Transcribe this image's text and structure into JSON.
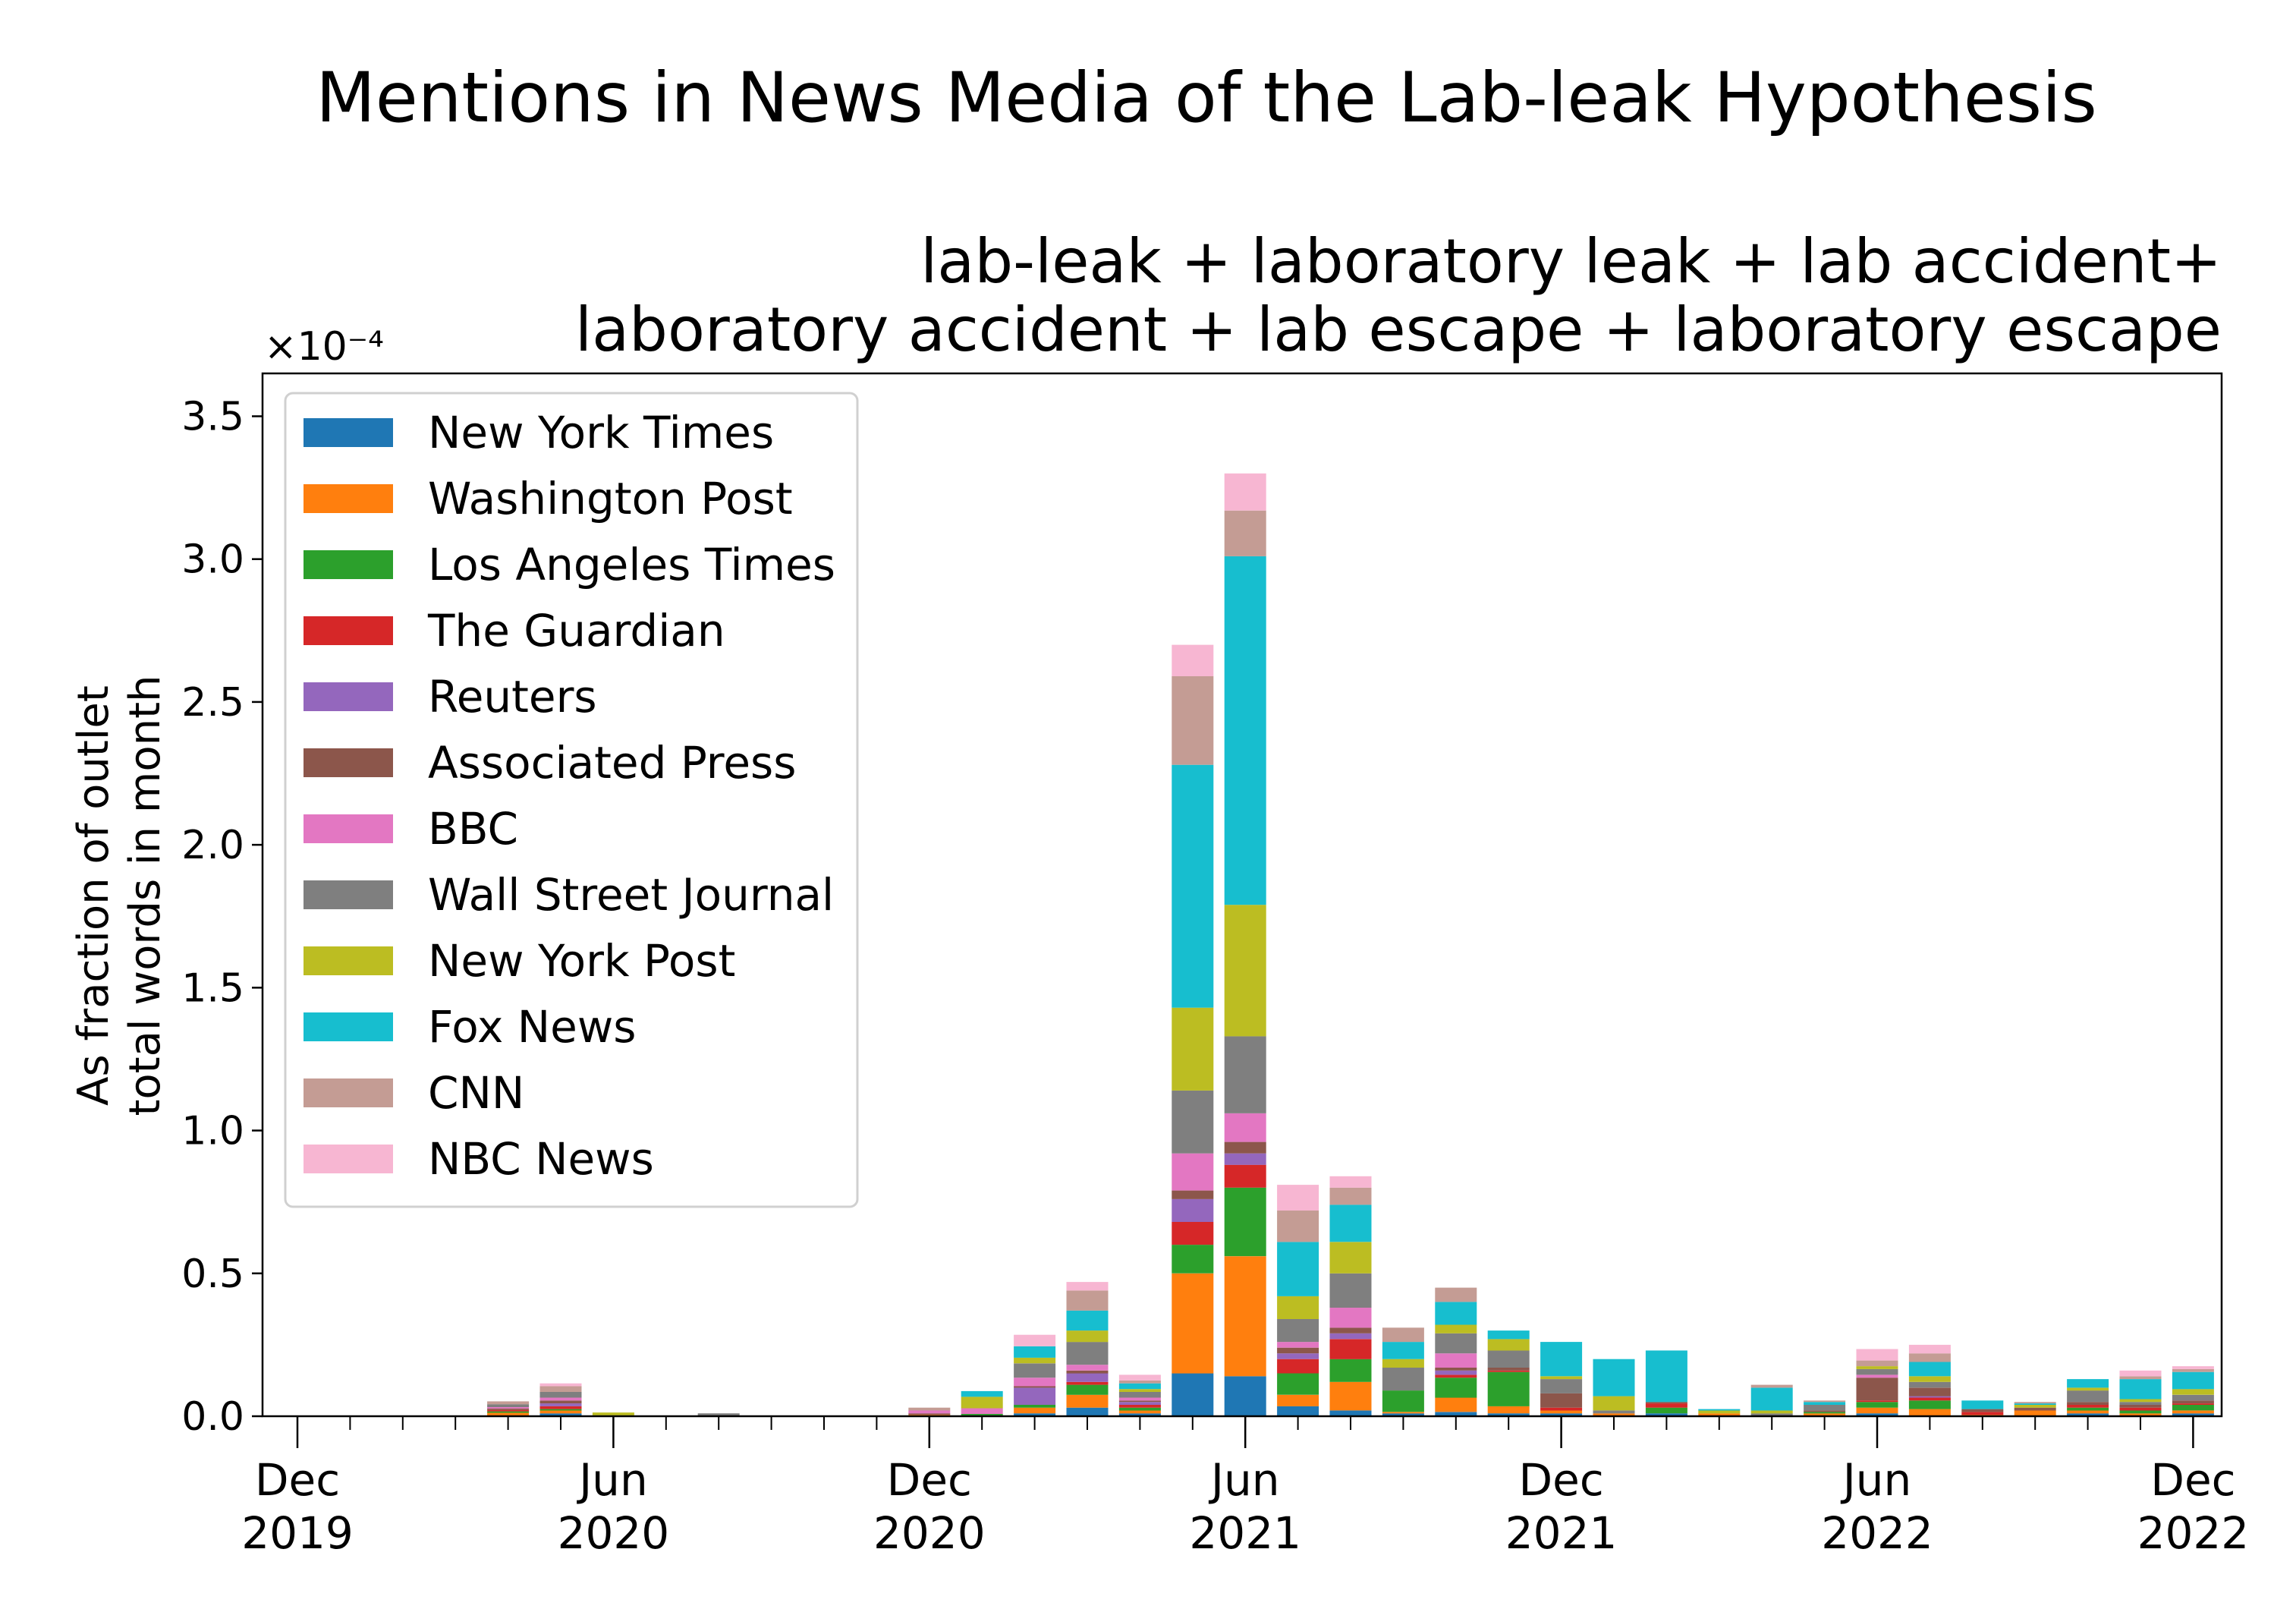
{
  "chart_data": {
    "type": "bar",
    "stacked": true,
    "title": "Mentions in News Media of the Lab-leak Hypothesis",
    "subtitle_lines": [
      "lab-leak + laboratory leak + lab accident+",
      "laboratory accident + lab escape + laboratory escape"
    ],
    "ylabel_lines": [
      "As fraction of outlet",
      "total words in month"
    ],
    "y_multiplier": "×10⁻⁴",
    "ylim": [
      0,
      3.65
    ],
    "yticks": [
      "0.0",
      "0.5",
      "1.0",
      "1.5",
      "2.0",
      "2.5",
      "3.0",
      "3.5"
    ],
    "grid": false,
    "legend_position": "top-left",
    "x": [
      "2019-12",
      "2020-01",
      "2020-02",
      "2020-03",
      "2020-04",
      "2020-05",
      "2020-06",
      "2020-07",
      "2020-08",
      "2020-09",
      "2020-10",
      "2020-11",
      "2020-12",
      "2021-01",
      "2021-02",
      "2021-03",
      "2021-04",
      "2021-05",
      "2021-06",
      "2021-07",
      "2021-08",
      "2021-09",
      "2021-10",
      "2021-11",
      "2021-12",
      "2022-01",
      "2022-02",
      "2022-03",
      "2022-04",
      "2022-05",
      "2022-06",
      "2022-07",
      "2022-08",
      "2022-09",
      "2022-10",
      "2022-11",
      "2022-12"
    ],
    "xtick_labels": [
      {
        "month": "Dec",
        "year": "2019",
        "index": 0
      },
      {
        "month": "Jun",
        "year": "2020",
        "index": 6
      },
      {
        "month": "Dec",
        "year": "2020",
        "index": 12
      },
      {
        "month": "Jun",
        "year": "2021",
        "index": 18
      },
      {
        "month": "Dec",
        "year": "2021",
        "index": 24
      },
      {
        "month": "Jun",
        "year": "2022",
        "index": 30
      },
      {
        "month": "Dec",
        "year": "2022",
        "index": 36
      }
    ],
    "series": [
      {
        "name": "New York Times",
        "color": "#1f77b4",
        "values": [
          0,
          0,
          0,
          0,
          0.002,
          0.01,
          0,
          0,
          0,
          0,
          0,
          0,
          0,
          0,
          0.01,
          0.03,
          0.01,
          0.15,
          0.14,
          0.035,
          0.02,
          0.01,
          0.015,
          0.01,
          0.01,
          0,
          0.01,
          0,
          0,
          0,
          0.01,
          0,
          0,
          0,
          0.01,
          0,
          0.01
        ]
      },
      {
        "name": "Washington Post",
        "color": "#ff7f0e",
        "values": [
          0,
          0,
          0.002,
          0,
          0.01,
          0.01,
          0,
          0,
          0,
          0,
          0,
          0,
          0.005,
          0.003,
          0.02,
          0.045,
          0.01,
          0.35,
          0.42,
          0.04,
          0.1,
          0.005,
          0.05,
          0.025,
          0.01,
          0.01,
          0,
          0.01,
          0,
          0.01,
          0.02,
          0.025,
          0.005,
          0.02,
          0.01,
          0.01,
          0.01
        ]
      },
      {
        "name": "Los Angeles Times",
        "color": "#2ca02c",
        "values": [
          0,
          0,
          0,
          0,
          0.005,
          0.005,
          0.003,
          0.002,
          0,
          0,
          0,
          0,
          0,
          0.005,
          0.01,
          0.035,
          0.01,
          0.1,
          0.24,
          0.075,
          0.08,
          0.075,
          0.07,
          0.12,
          0,
          0,
          0.02,
          0,
          0,
          0.005,
          0.02,
          0.03,
          0,
          0,
          0.01,
          0.01,
          0.02
        ]
      },
      {
        "name": "The Guardian",
        "color": "#d62728",
        "values": [
          0,
          0,
          0,
          0,
          0.005,
          0.01,
          0,
          0,
          0,
          0,
          0,
          0,
          0,
          0,
          0,
          0.01,
          0.01,
          0.08,
          0.08,
          0.05,
          0.07,
          0,
          0.01,
          0.005,
          0.01,
          0,
          0.015,
          0,
          0,
          0,
          0.005,
          0.01,
          0.01,
          0,
          0.01,
          0.01,
          0.005
        ]
      },
      {
        "name": "Reuters",
        "color": "#9467bd",
        "values": [
          0,
          0,
          0,
          0,
          0,
          0.01,
          0,
          0,
          0,
          0,
          0,
          0,
          0,
          0,
          0.06,
          0.03,
          0.01,
          0.08,
          0.04,
          0.02,
          0.02,
          0,
          0.015,
          0,
          0,
          0,
          0,
          0,
          0,
          0,
          0,
          0.005,
          0,
          0,
          0,
          0,
          0
        ]
      },
      {
        "name": "Associated Press",
        "color": "#8c564b",
        "values": [
          0,
          0,
          0,
          0,
          0.005,
          0.01,
          0,
          0,
          0,
          0,
          0,
          0,
          0.005,
          0,
          0.005,
          0.01,
          0.005,
          0.03,
          0.04,
          0.02,
          0.02,
          0,
          0.01,
          0.01,
          0.05,
          0,
          0.005,
          0,
          0,
          0.005,
          0.08,
          0.03,
          0.01,
          0.01,
          0.01,
          0.01,
          0.01
        ]
      },
      {
        "name": "BBC",
        "color": "#e377c2",
        "values": [
          0,
          0,
          0,
          0,
          0.005,
          0.01,
          0,
          0,
          0,
          0,
          0,
          0,
          0.01,
          0.02,
          0.03,
          0.02,
          0.01,
          0.13,
          0.1,
          0.02,
          0.07,
          0,
          0.05,
          0,
          0,
          0,
          0,
          0,
          0,
          0,
          0.01,
          0,
          0,
          0,
          0,
          0,
          0
        ]
      },
      {
        "name": "Wall Street Journal",
        "color": "#7f7f7f",
        "values": [
          0,
          0,
          0,
          0,
          0.01,
          0.02,
          0,
          0,
          0.01,
          0,
          0,
          0,
          0,
          0,
          0.05,
          0.08,
          0.02,
          0.22,
          0.27,
          0.08,
          0.12,
          0.08,
          0.07,
          0.06,
          0.05,
          0.01,
          0,
          0,
          0.01,
          0.02,
          0.02,
          0.02,
          0,
          0,
          0.04,
          0.01,
          0.02
        ]
      },
      {
        "name": "New York Post",
        "color": "#bcbd22",
        "values": [
          0,
          0,
          0,
          0,
          0,
          0,
          0.01,
          0,
          0,
          0,
          0,
          0,
          0,
          0.04,
          0.02,
          0.04,
          0.01,
          0.29,
          0.46,
          0.08,
          0.11,
          0.03,
          0.03,
          0.04,
          0.01,
          0.05,
          0,
          0.01,
          0.01,
          0,
          0.01,
          0.02,
          0,
          0.01,
          0.01,
          0.01,
          0.02
        ]
      },
      {
        "name": "Fox News",
        "color": "#17becf",
        "values": [
          0,
          0,
          0,
          0,
          0,
          0,
          0,
          0,
          0,
          0,
          0,
          0,
          0,
          0.02,
          0.04,
          0.07,
          0.02,
          0.85,
          1.22,
          0.19,
          0.13,
          0.06,
          0.08,
          0.03,
          0.12,
          0.13,
          0.18,
          0.005,
          0.08,
          0.01,
          0,
          0.05,
          0.03,
          0.005,
          0.03,
          0.07,
          0.06
        ]
      },
      {
        "name": "CNN",
        "color": "#c49c94",
        "values": [
          0,
          0,
          0,
          0,
          0.01,
          0.02,
          0,
          0,
          0,
          0,
          0,
          0,
          0.01,
          0,
          0,
          0.07,
          0.01,
          0.31,
          0.16,
          0.11,
          0.06,
          0.05,
          0.05,
          0,
          0,
          0,
          0,
          0,
          0.01,
          0.005,
          0.02,
          0.03,
          0,
          0.005,
          0,
          0.01,
          0.01
        ]
      },
      {
        "name": "NBC News",
        "color": "#f7b6d2",
        "values": [
          0,
          0,
          0,
          0,
          0,
          0.01,
          0,
          0,
          0,
          0,
          0,
          0,
          0,
          0,
          0.04,
          0.03,
          0.02,
          0.11,
          0.13,
          0.09,
          0.04,
          0,
          0,
          0,
          0,
          0,
          0,
          0,
          0,
          0,
          0.04,
          0.03,
          0,
          0,
          0,
          0.02,
          0.01
        ]
      }
    ]
  }
}
